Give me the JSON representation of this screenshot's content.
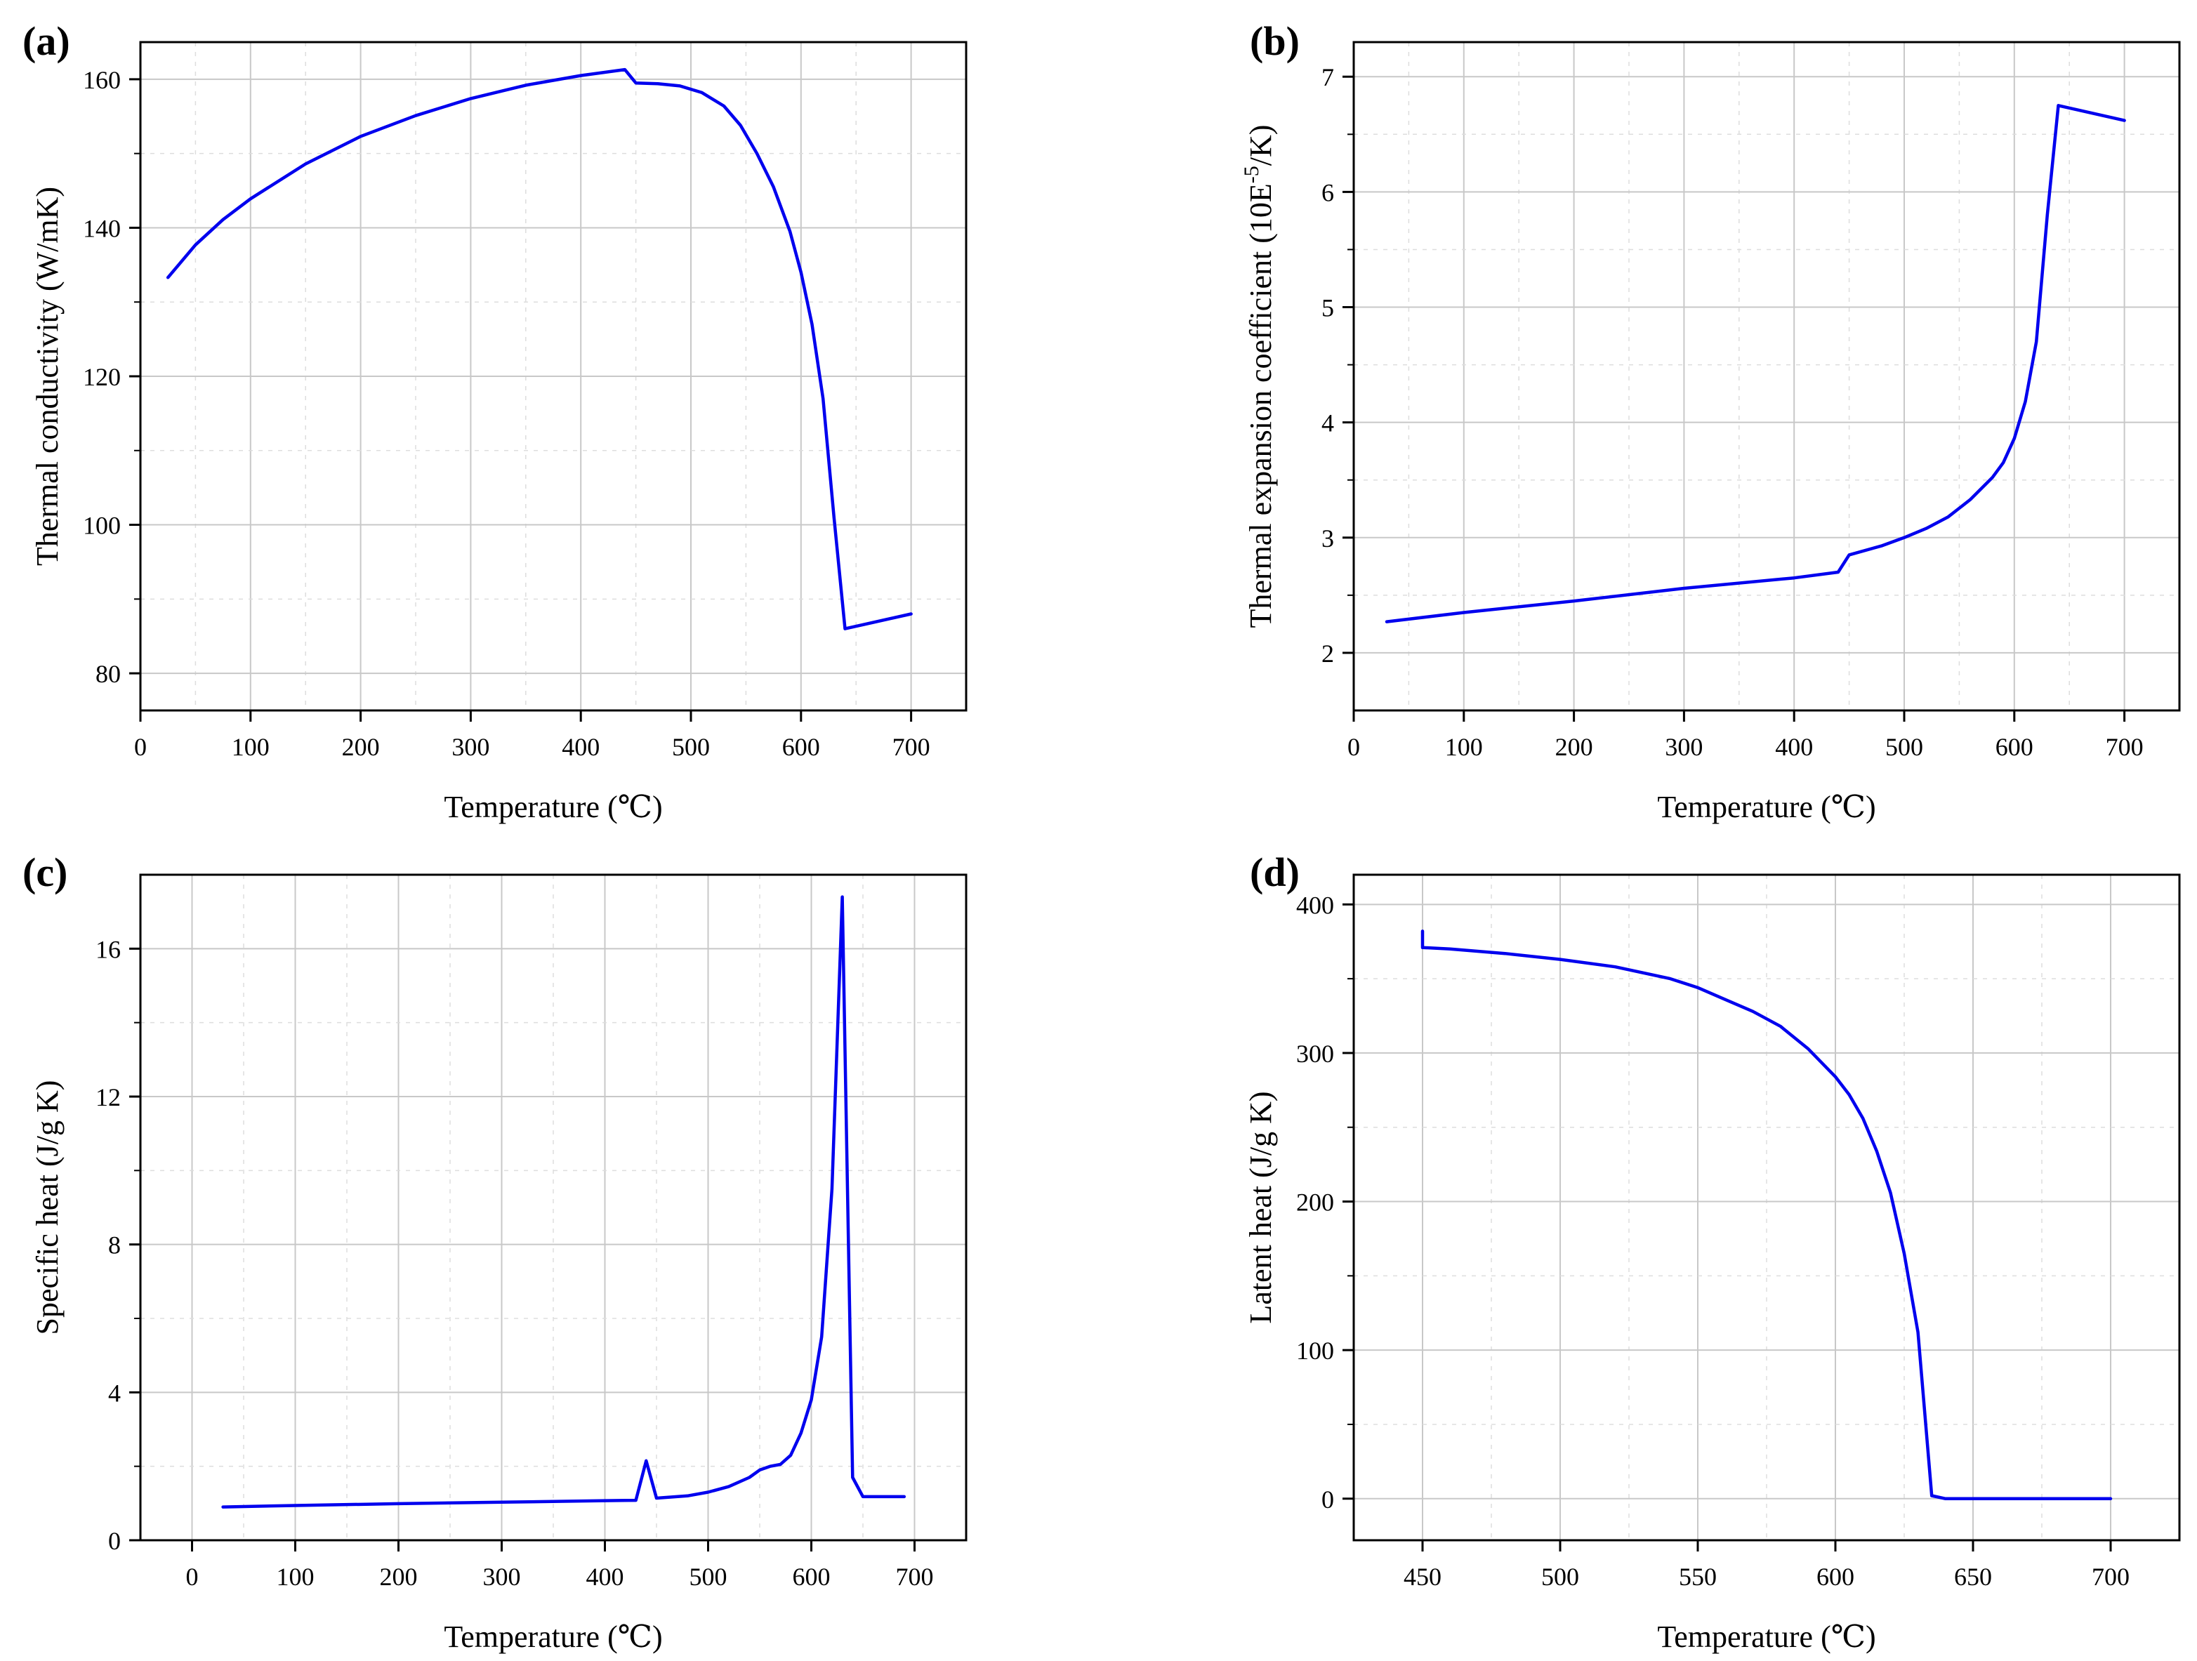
{
  "figure": {
    "series_color": "#0000ee",
    "grid_color": "#c8c8c8",
    "axis_color": "#000000"
  },
  "chart_data": [
    {
      "id": "a",
      "type": "line",
      "panel_label": "(a)",
      "title": "",
      "xlabel": "Temperature (℃)",
      "ylabel": "Thermal conductivity (W/mK)",
      "xlim": [
        0,
        750
      ],
      "ylim": [
        75,
        165
      ],
      "xticks": [
        0,
        100,
        200,
        300,
        400,
        500,
        600,
        700
      ],
      "yticks": [
        80,
        100,
        120,
        140,
        160
      ],
      "minor_grid_y": [
        90,
        110,
        130,
        150
      ],
      "grid": true,
      "series": [
        {
          "name": "Thermal conductivity",
          "x": [
            25,
            50,
            75,
            100,
            150,
            200,
            250,
            300,
            350,
            400,
            440,
            450,
            470,
            490,
            510,
            530,
            545,
            560,
            575,
            590,
            600,
            610,
            620,
            630,
            640,
            700
          ],
          "y": [
            133.3,
            137.7,
            141.1,
            143.9,
            148.6,
            152.3,
            155.1,
            157.4,
            159.2,
            160.5,
            161.3,
            159.5,
            159.4,
            159.1,
            158.2,
            156.4,
            153.8,
            150.0,
            145.5,
            139.5,
            134.0,
            127.0,
            117.0,
            101.0,
            86.0,
            88.0
          ]
        }
      ]
    },
    {
      "id": "b",
      "type": "line",
      "panel_label": "(b)",
      "title": "",
      "xlabel": "Temperature (℃)",
      "ylabel": "Thermal expansion coefficient (10E",
      "ylabel_superscript": "-5",
      "ylabel_suffix": "/K)",
      "xlim": [
        0,
        750
      ],
      "ylim": [
        1.5,
        7.3
      ],
      "xticks": [
        0,
        100,
        200,
        300,
        400,
        500,
        600,
        700
      ],
      "yticks": [
        2,
        3,
        4,
        5,
        6,
        7
      ],
      "minor_grid_y": [
        2.5,
        3.5,
        4.5,
        5.5,
        6.5
      ],
      "grid": true,
      "series": [
        {
          "name": "Thermal expansion coefficient",
          "x": [
            30,
            100,
            200,
            300,
            400,
            440,
            450,
            480,
            500,
            520,
            540,
            560,
            580,
            590,
            600,
            610,
            620,
            630,
            640,
            700
          ],
          "y": [
            2.27,
            2.35,
            2.45,
            2.56,
            2.65,
            2.7,
            2.85,
            2.93,
            3.0,
            3.08,
            3.18,
            3.33,
            3.52,
            3.65,
            3.86,
            4.18,
            4.7,
            5.8,
            6.75,
            6.62
          ]
        }
      ]
    },
    {
      "id": "c",
      "type": "line",
      "panel_label": "(c)",
      "title": "",
      "xlabel": "Temperature (℃)",
      "ylabel": "Specific heat (J/g K)",
      "xlim": [
        -50,
        750
      ],
      "ylim": [
        0,
        18
      ],
      "xticks": [
        0,
        100,
        200,
        300,
        400,
        500,
        600,
        700
      ],
      "yticks": [
        0,
        4,
        8,
        12,
        16
      ],
      "minor_grid_y": [
        2,
        6,
        10,
        14
      ],
      "grid": true,
      "series": [
        {
          "name": "Specific heat",
          "x": [
            30,
            100,
            200,
            300,
            400,
            430,
            440,
            450,
            480,
            500,
            520,
            540,
            550,
            560,
            570,
            580,
            590,
            600,
            610,
            620,
            630,
            640,
            650,
            690
          ],
          "y": [
            0.9,
            0.94,
            0.99,
            1.03,
            1.07,
            1.08,
            2.15,
            1.14,
            1.2,
            1.3,
            1.45,
            1.7,
            1.9,
            2.0,
            2.05,
            2.3,
            2.9,
            3.8,
            5.5,
            9.5,
            17.4,
            1.7,
            1.18,
            1.18
          ]
        }
      ]
    },
    {
      "id": "d",
      "type": "line",
      "panel_label": "(d)",
      "title": "",
      "xlabel": "Temperature (℃)",
      "ylabel": "Latent heat (J/g K)",
      "xlim": [
        425,
        725
      ],
      "ylim": [
        -28,
        420
      ],
      "xticks": [
        450,
        500,
        550,
        600,
        650,
        700
      ],
      "yticks": [
        0,
        100,
        200,
        300,
        400
      ],
      "minor_grid_y": [
        50,
        150,
        250,
        350
      ],
      "grid": true,
      "series": [
        {
          "name": "Latent heat",
          "x": [
            450,
            450,
            460,
            480,
            500,
            520,
            540,
            550,
            560,
            570,
            580,
            590,
            600,
            605,
            610,
            615,
            620,
            625,
            630,
            635,
            640,
            700
          ],
          "y": [
            382,
            371,
            370,
            367,
            363,
            358,
            350,
            344,
            336,
            328,
            318,
            303,
            284,
            272,
            256,
            234,
            206,
            165,
            112,
            2,
            0,
            0
          ]
        }
      ]
    }
  ]
}
